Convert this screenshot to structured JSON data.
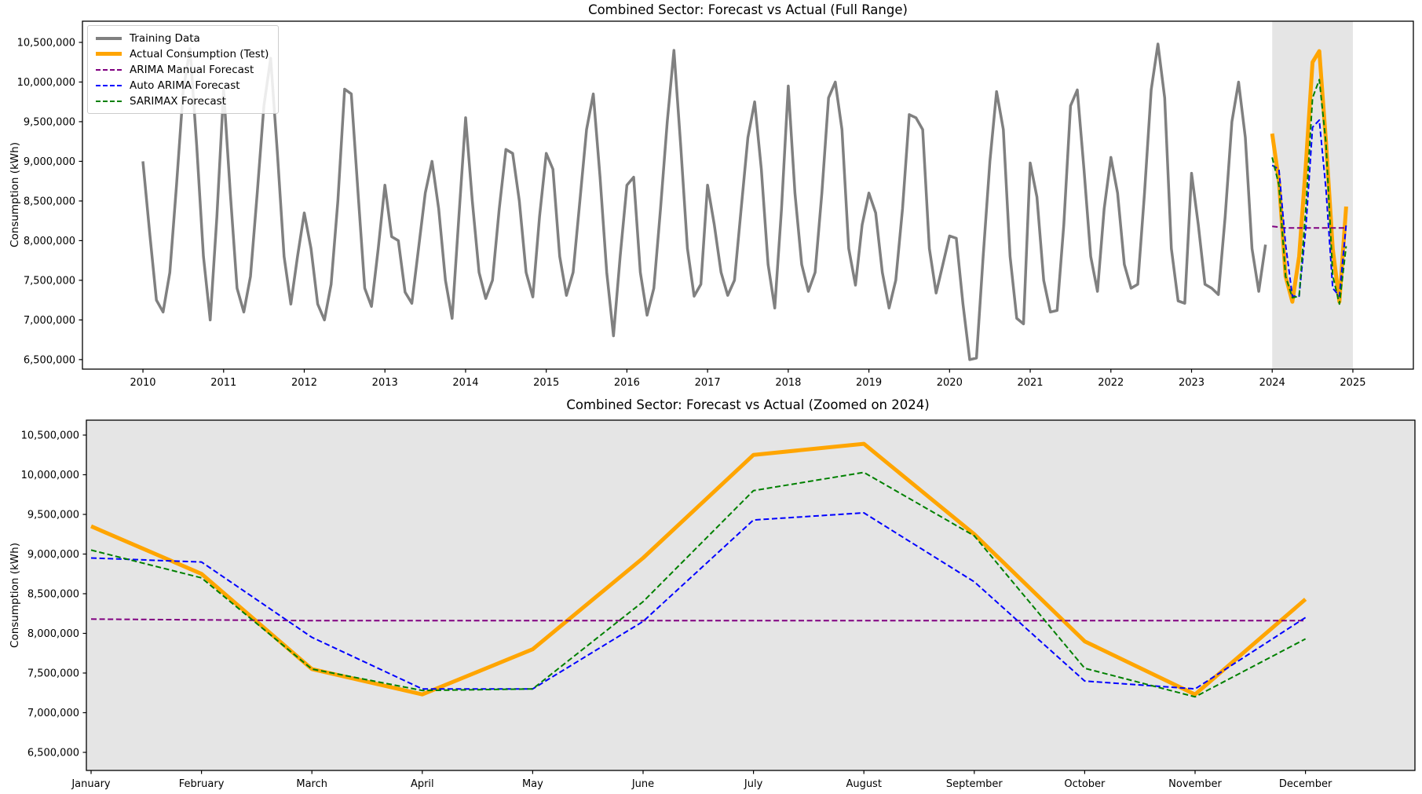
{
  "figure": {
    "background": "#ffffff",
    "axis_color": "#000000",
    "text_color": "#000000"
  },
  "chart_data": [
    {
      "type": "line",
      "title": "Combined Sector: Forecast vs Actual (Full Range)",
      "xlabel": "",
      "ylabel": "Consumption (kWh)",
      "grid": false,
      "legend_position": "upper left",
      "x_ticks": [
        2010,
        2011,
        2012,
        2013,
        2014,
        2015,
        2016,
        2017,
        2018,
        2019,
        2020,
        2021,
        2022,
        2023,
        2024,
        2025
      ],
      "x_tick_labels": [
        "2010",
        "2011",
        "2012",
        "2013",
        "2014",
        "2015",
        "2016",
        "2017",
        "2018",
        "2019",
        "2020",
        "2021",
        "2022",
        "2023",
        "2024",
        "2025"
      ],
      "y_ticks": [
        6500000,
        7000000,
        7500000,
        8000000,
        8500000,
        9000000,
        9500000,
        10000000,
        10500000
      ],
      "y_tick_labels": [
        "6,500,000",
        "7,000,000",
        "7,500,000",
        "8,000,000",
        "8,500,000",
        "9,000,000",
        "9,500,000",
        "10,000,000",
        "10,500,000"
      ],
      "ylim": [
        6380000,
        10767000
      ],
      "xlim": [
        2009.25,
        2025.75
      ],
      "highlight_span": {
        "start": 2024,
        "end": 2025,
        "color": "#e5e5e5"
      },
      "series": [
        {
          "name": "Training Data",
          "color": "#808080",
          "style": "solid",
          "line_width": 3.5,
          "start_year": 2010,
          "frequency": "monthly",
          "values_by_year": [
            [
              9000000,
              8100000,
              7250000,
              7100000,
              7600000,
              8700000,
              9900000,
              10420000,
              9200000,
              7800000,
              7000000,
              8300000
            ],
            [
              9900000,
              8600000,
              7400000,
              7100000,
              7550000,
              8600000,
              9700000,
              10300000,
              9100000,
              7800000,
              7200000,
              7800000
            ],
            [
              8350000,
              7900000,
              7200000,
              7000000,
              7450000,
              8500000,
              9910000,
              9850000,
              8600000,
              7400000,
              7170000,
              7900000
            ],
            [
              8700000,
              8050000,
              8000000,
              7350000,
              7210000,
              7900000,
              8600000,
              9000000,
              8400000,
              7500000,
              7020000,
              8300000
            ],
            [
              9550000,
              8500000,
              7600000,
              7270000,
              7500000,
              8400000,
              9150000,
              9100000,
              8500000,
              7600000,
              7290000,
              8300000
            ],
            [
              9100000,
              8900000,
              7800000,
              7310000,
              7600000,
              8500000,
              9400000,
              9850000,
              8800000,
              7600000,
              6800000,
              7800000
            ],
            [
              8700000,
              8800000,
              7600000,
              7060000,
              7400000,
              8400000,
              9500000,
              10400000,
              9200000,
              7900000,
              7300000,
              7450000
            ],
            [
              8700000,
              8200000,
              7600000,
              7310000,
              7500000,
              8400000,
              9300000,
              9750000,
              8900000,
              7700000,
              7150000,
              8400000
            ],
            [
              9950000,
              8600000,
              7700000,
              7360000,
              7600000,
              8600000,
              9800000,
              10000000,
              9400000,
              7900000,
              7440000,
              8200000
            ],
            [
              8600000,
              8350000,
              7600000,
              7150000,
              7500000,
              8400000,
              9590000,
              9550000,
              9400000,
              7900000,
              7340000,
              7700000
            ],
            [
              8060000,
              8030000,
              7200000,
              6500000,
              6520000,
              7800000,
              9000000,
              9880000,
              9400000,
              7800000,
              7020000,
              6950000
            ],
            [
              8980000,
              8550000,
              7500000,
              7100000,
              7120000,
              8200000,
              9700000,
              9900000,
              8900000,
              7800000,
              7360000,
              8400000
            ],
            [
              9050000,
              8600000,
              7700000,
              7400000,
              7450000,
              8600000,
              9900000,
              10480000,
              9800000,
              7900000,
              7240000,
              7210000
            ],
            [
              8850000,
              8200000,
              7450000,
              7400000,
              7320000,
              8300000,
              9500000,
              10000000,
              9300000,
              7900000,
              7360000,
              7950000
            ]
          ]
        },
        {
          "name": "Actual Consumption (Test)",
          "color": "#ffa500",
          "style": "solid",
          "line_width": 5,
          "year": 2024,
          "values": [
            9350000,
            8750000,
            7550000,
            7230000,
            7800000,
            8950000,
            10250000,
            10390000,
            9250000,
            7900000,
            7230000,
            8430000
          ]
        },
        {
          "name": "ARIMA Manual Forecast",
          "color": "#800080",
          "style": "dashed",
          "line_width": 2,
          "year": 2024,
          "values": [
            8180000,
            8170000,
            8160000,
            8160000,
            8160000,
            8160000,
            8160000,
            8160000,
            8160000,
            8160000,
            8160000,
            8160000
          ]
        },
        {
          "name": "Auto ARIMA Forecast",
          "color": "#0000ff",
          "style": "dashed",
          "line_width": 2,
          "year": 2024,
          "values": [
            8950000,
            8900000,
            7950000,
            7300000,
            7300000,
            8150000,
            9430000,
            9520000,
            8650000,
            7400000,
            7300000,
            8200000
          ]
        },
        {
          "name": "SARIMAX Forecast",
          "color": "#008000",
          "style": "dashed",
          "line_width": 2,
          "year": 2024,
          "values": [
            9050000,
            8700000,
            7550000,
            7280000,
            7300000,
            8400000,
            9800000,
            10030000,
            9230000,
            7560000,
            7200000,
            7930000
          ]
        }
      ]
    },
    {
      "type": "line",
      "title": "Combined Sector: Forecast vs Actual (Zoomed on 2024)",
      "xlabel": "",
      "ylabel": "Consumption (kWh)",
      "grid": false,
      "background": "#e5e5e5",
      "categories": [
        "January",
        "February",
        "March",
        "April",
        "May",
        "June",
        "July",
        "August",
        "September",
        "October",
        "November",
        "December"
      ],
      "y_ticks": [
        6500000,
        7000000,
        7500000,
        8000000,
        8500000,
        9000000,
        9500000,
        10000000,
        10500000
      ],
      "y_tick_labels": [
        "6,500,000",
        "7,000,000",
        "7,500,000",
        "8,000,000",
        "8,500,000",
        "9,000,000",
        "9,500,000",
        "10,000,000",
        "10,500,000"
      ],
      "ylim": [
        6272000,
        10688000
      ],
      "series": [
        {
          "name": "Actual Consumption (Test)",
          "color": "#ffa500",
          "style": "solid",
          "line_width": 5,
          "values": [
            9350000,
            8750000,
            7550000,
            7230000,
            7800000,
            8950000,
            10250000,
            10390000,
            9250000,
            7900000,
            7230000,
            8430000
          ]
        },
        {
          "name": "ARIMA Manual Forecast",
          "color": "#800080",
          "style": "dashed",
          "line_width": 2,
          "values": [
            8180000,
            8170000,
            8160000,
            8160000,
            8160000,
            8160000,
            8160000,
            8160000,
            8160000,
            8160000,
            8160000,
            8160000
          ]
        },
        {
          "name": "Auto ARIMA Forecast",
          "color": "#0000ff",
          "style": "dashed",
          "line_width": 2,
          "values": [
            8950000,
            8900000,
            7950000,
            7300000,
            7300000,
            8150000,
            9430000,
            9520000,
            8650000,
            7400000,
            7300000,
            8200000
          ]
        },
        {
          "name": "SARIMAX Forecast",
          "color": "#008000",
          "style": "dashed",
          "line_width": 2,
          "values": [
            9050000,
            8700000,
            7550000,
            7280000,
            7300000,
            8400000,
            9800000,
            10030000,
            9230000,
            7560000,
            7200000,
            7930000
          ]
        }
      ]
    }
  ]
}
